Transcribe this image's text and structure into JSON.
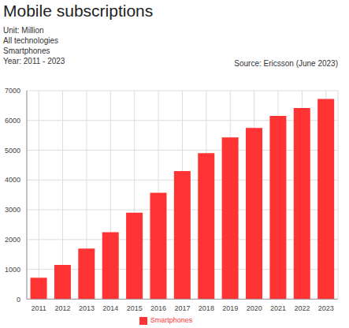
{
  "chart_data": {
    "type": "bar",
    "title": "Mobile subscriptions",
    "subtitle": [
      "Unit: Million",
      "All technologies",
      "Smartphones",
      "Year: 2011 - 2023"
    ],
    "annotations": [
      "Source: Ericsson (June 2023)"
    ],
    "categories": [
      "2011",
      "2012",
      "2013",
      "2014",
      "2015",
      "2016",
      "2017",
      "2018",
      "2019",
      "2020",
      "2021",
      "2022",
      "2023"
    ],
    "series": [
      {
        "name": "Smartphones",
        "color": "#ff3333",
        "values": [
          720,
          1150,
          1700,
          2250,
          2900,
          3570,
          4300,
          4900,
          5430,
          5750,
          6150,
          6420,
          6720
        ]
      }
    ],
    "ylim": [
      0,
      7000
    ],
    "yticks": [
      0,
      1000,
      2000,
      3000,
      4000,
      5000,
      6000,
      7000
    ],
    "grid": true,
    "legend": "bottom"
  }
}
